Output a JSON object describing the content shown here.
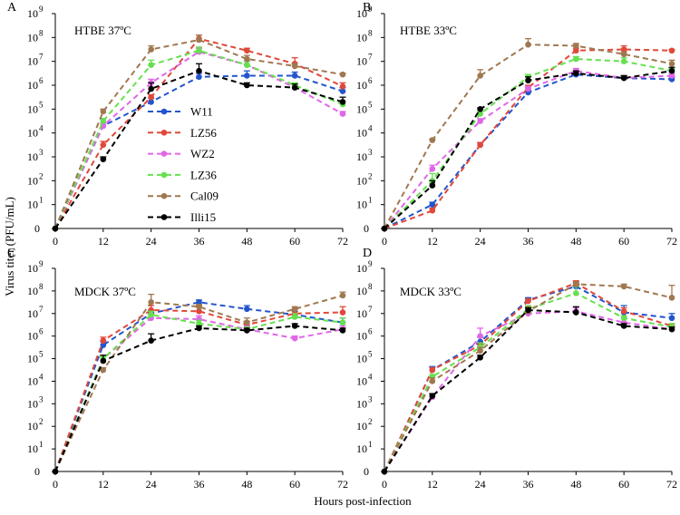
{
  "figure": {
    "ylabel": "Virus titer (PFU/mL)",
    "xlabel": "Hours post-infection"
  },
  "legend": [
    {
      "name": "W11",
      "color": "#2255cc"
    },
    {
      "name": "LZ56",
      "color": "#e0483a"
    },
    {
      "name": "WZ2",
      "color": "#e066e8"
    },
    {
      "name": "LZ36",
      "color": "#66e050"
    },
    {
      "name": "Cal09",
      "color": "#a07850"
    },
    {
      "name": "Illi15",
      "color": "#000000"
    }
  ],
  "chart_data": [
    {
      "type": "line",
      "letter": "A",
      "title": "HTBE 37ºC",
      "x": [
        0,
        12,
        24,
        36,
        48,
        60,
        72
      ],
      "xticks": [
        "0",
        "12",
        "24",
        "36",
        "48",
        "60",
        "72"
      ],
      "ylim": [
        0,
        9
      ],
      "yticks": [
        "0",
        "10",
        "10",
        "10",
        "10",
        "10",
        "10",
        "10",
        "10",
        "10"
      ],
      "ytick_exponents": [
        "",
        "1",
        "2",
        "3",
        "4",
        "5",
        "6",
        "7",
        "8",
        "9"
      ],
      "series": [
        {
          "name": "W11",
          "values": [
            0,
            4.3,
            5.3,
            6.35,
            6.4,
            6.4,
            5.75
          ],
          "errors": [
            0,
            0.3,
            0.15,
            0.15,
            0.2,
            0.15,
            0.15
          ]
        },
        {
          "name": "LZ56",
          "values": [
            0,
            3.5,
            5.5,
            7.95,
            7.45,
            6.9,
            5.95
          ],
          "errors": [
            0,
            0.15,
            0.1,
            0.15,
            0.1,
            0.25,
            0.15
          ]
        },
        {
          "name": "WZ2",
          "values": [
            0,
            4.3,
            6.1,
            7.4,
            6.85,
            5.9,
            4.8
          ],
          "errors": [
            0,
            0.1,
            0.15,
            0.15,
            0.15,
            0.15,
            0.1
          ]
        },
        {
          "name": "LZ36",
          "values": [
            0,
            4.5,
            6.85,
            7.45,
            6.85,
            6.0,
            5.2
          ],
          "errors": [
            0,
            0.1,
            0.2,
            0.15,
            0.15,
            0.1,
            0.1
          ]
        },
        {
          "name": "Cal09",
          "values": [
            0,
            4.9,
            7.5,
            7.9,
            7.1,
            6.8,
            6.45
          ],
          "errors": [
            0,
            0.1,
            0.15,
            0.2,
            0.15,
            0.1,
            0.05
          ]
        },
        {
          "name": "Illi15",
          "values": [
            0,
            2.9,
            5.85,
            6.6,
            6.0,
            5.9,
            5.3
          ],
          "errors": [
            0,
            0.1,
            0.25,
            0.3,
            0.1,
            0.15,
            0.2
          ]
        }
      ]
    },
    {
      "type": "line",
      "letter": "B",
      "title": "HTBE 33ºC",
      "x": [
        0,
        12,
        24,
        36,
        48,
        60,
        72
      ],
      "xticks": [
        "0",
        "12",
        "24",
        "36",
        "48",
        "60",
        "72"
      ],
      "ylim": [
        0,
        9
      ],
      "yticks": [
        "0",
        "10",
        "10",
        "10",
        "10",
        "10",
        "10",
        "10",
        "10",
        "10"
      ],
      "ytick_exponents": [
        "",
        "1",
        "2",
        "3",
        "4",
        "5",
        "6",
        "7",
        "8",
        "9"
      ],
      "series": [
        {
          "name": "W11",
          "values": [
            0,
            1.0,
            3.5,
            5.7,
            6.45,
            6.3,
            6.25
          ],
          "errors": [
            0,
            0.1,
            0.1,
            0.1,
            0.1,
            0.1,
            0.1
          ]
        },
        {
          "name": "LZ56",
          "values": [
            0,
            0.75,
            3.5,
            5.9,
            7.45,
            7.5,
            7.45
          ],
          "errors": [
            0,
            0.1,
            0.1,
            0.1,
            0.1,
            0.15,
            0.05
          ]
        },
        {
          "name": "WZ2",
          "values": [
            0,
            2.5,
            4.5,
            5.85,
            6.6,
            6.3,
            6.4
          ],
          "errors": [
            0,
            0.15,
            0.1,
            0.1,
            0.1,
            0.1,
            0.1
          ]
        },
        {
          "name": "LZ36",
          "values": [
            0,
            2.0,
            4.8,
            6.35,
            7.1,
            7.0,
            6.6
          ],
          "errors": [
            0,
            0.3,
            0.1,
            0.1,
            0.1,
            0.15,
            0.1
          ]
        },
        {
          "name": "Cal09",
          "values": [
            0,
            3.7,
            6.4,
            7.7,
            7.65,
            7.3,
            6.9
          ],
          "errors": [
            0,
            0.05,
            0.25,
            0.25,
            0.1,
            0.1,
            0.15
          ]
        },
        {
          "name": "Illi15",
          "values": [
            0,
            1.8,
            5.0,
            6.2,
            6.5,
            6.3,
            6.6
          ],
          "errors": [
            0,
            0.2,
            0.05,
            0.15,
            0.1,
            0.1,
            0.15
          ]
        }
      ]
    },
    {
      "type": "line",
      "letter": "C",
      "title": "MDCK 37ºC",
      "x": [
        0,
        12,
        24,
        36,
        48,
        60,
        72
      ],
      "xticks": [
        "0",
        "12",
        "24",
        "36",
        "48",
        "60",
        "72"
      ],
      "ylim": [
        0,
        9
      ],
      "yticks": [
        "0",
        "10",
        "10",
        "10",
        "10",
        "10",
        "10",
        "10",
        "10",
        "10"
      ],
      "ytick_exponents": [
        "",
        "1",
        "2",
        "3",
        "4",
        "5",
        "6",
        "7",
        "8",
        "9"
      ],
      "series": [
        {
          "name": "W11",
          "values": [
            0,
            5.6,
            7.0,
            7.5,
            7.2,
            6.95,
            6.6
          ],
          "errors": [
            0,
            0.15,
            0.15,
            0.1,
            0.15,
            0.15,
            0.2
          ]
        },
        {
          "name": "LZ56",
          "values": [
            0,
            5.8,
            7.15,
            7.1,
            6.5,
            7.0,
            7.05
          ],
          "errors": [
            0,
            0.15,
            0.2,
            0.25,
            0.15,
            0.2,
            0.25
          ]
        },
        {
          "name": "WZ2",
          "values": [
            0,
            5.0,
            6.8,
            6.75,
            6.3,
            5.9,
            6.3
          ],
          "errors": [
            0,
            0.15,
            0.15,
            0.15,
            0.15,
            0.1,
            0.15
          ]
        },
        {
          "name": "LZ36",
          "values": [
            0,
            5.0,
            6.95,
            6.55,
            6.3,
            6.85,
            6.6
          ],
          "errors": [
            0,
            0.1,
            0.15,
            0.15,
            0.1,
            0.15,
            0.2
          ]
        },
        {
          "name": "Cal09",
          "values": [
            0,
            4.5,
            7.5,
            7.3,
            6.6,
            7.2,
            7.8
          ],
          "errors": [
            0,
            0.1,
            0.35,
            0.1,
            0.2,
            0.1,
            0.15
          ]
        },
        {
          "name": "Illi15",
          "values": [
            0,
            4.9,
            5.8,
            6.35,
            6.25,
            6.45,
            6.25
          ],
          "errors": [
            0,
            0.25,
            0.3,
            0.1,
            0.1,
            0.1,
            0.1
          ]
        }
      ]
    },
    {
      "type": "line",
      "letter": "D",
      "title": "MDCK 33ºC",
      "x": [
        0,
        12,
        24,
        36,
        48,
        60,
        72
      ],
      "xticks": [
        "0",
        "12",
        "24",
        "36",
        "48",
        "60",
        "72"
      ],
      "ylim": [
        0,
        9
      ],
      "yticks": [
        "0",
        "10",
        "10",
        "10",
        "10",
        "10",
        "10",
        "10",
        "10",
        "10"
      ],
      "ytick_exponents": [
        "",
        "1",
        "2",
        "3",
        "4",
        "5",
        "6",
        "7",
        "8",
        "9"
      ],
      "series": [
        {
          "name": "W11",
          "values": [
            0,
            4.5,
            5.75,
            7.6,
            8.2,
            7.05,
            6.8
          ],
          "errors": [
            0,
            0.15,
            0.2,
            0.1,
            0.15,
            0.3,
            0.2
          ]
        },
        {
          "name": "LZ56",
          "values": [
            0,
            4.5,
            5.6,
            7.55,
            8.35,
            7.1,
            6.45
          ],
          "errors": [
            0,
            0.1,
            0.1,
            0.1,
            0.1,
            0.15,
            0.1
          ]
        },
        {
          "name": "WZ2",
          "values": [
            0,
            3.3,
            6.0,
            7.0,
            7.1,
            6.6,
            6.3
          ],
          "errors": [
            0,
            0.15,
            0.35,
            0.1,
            0.15,
            0.2,
            0.15
          ]
        },
        {
          "name": "LZ36",
          "values": [
            0,
            4.2,
            5.5,
            7.2,
            7.9,
            6.8,
            6.4
          ],
          "errors": [
            0,
            0.1,
            0.2,
            0.15,
            0.3,
            0.1,
            0.15
          ]
        },
        {
          "name": "Cal09",
          "values": [
            0,
            4.0,
            5.35,
            7.1,
            8.3,
            8.2,
            7.7
          ],
          "errors": [
            0,
            0.15,
            0.15,
            0.2,
            0.1,
            0.1,
            0.55
          ]
        },
        {
          "name": "Illi15",
          "values": [
            0,
            3.35,
            5.05,
            7.15,
            7.05,
            6.45,
            6.3
          ],
          "errors": [
            0,
            0.1,
            0.1,
            0.1,
            0.25,
            0.1,
            0.1
          ]
        }
      ]
    }
  ]
}
